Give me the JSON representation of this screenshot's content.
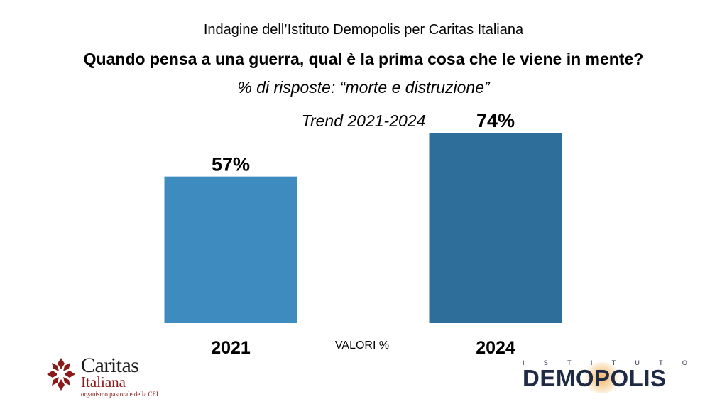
{
  "header": {
    "subtitle": "Indagine dell’Istituto Demopolis per Caritas Italiana",
    "question": "Quando pensa a una guerra, qual è la prima cosa che le viene in mente?",
    "answer": "% di risposte: “morte e distruzione”",
    "trend": "Trend 2021-2024"
  },
  "unit_note": "VALORI %",
  "chart_data": {
    "type": "bar",
    "title": "Quando pensa a una guerra, qual è la prima cosa che le viene in mente?",
    "subtitle": "% di risposte: “morte e distruzione”",
    "categories": [
      "2021",
      "2024"
    ],
    "values": [
      57,
      74
    ],
    "value_labels": [
      "57%",
      "74%"
    ],
    "colors": [
      "#3d8bbf",
      "#2e6e9a"
    ],
    "ylim": [
      0,
      100
    ],
    "grid": false,
    "legend": "none"
  },
  "logos": {
    "caritas": {
      "name": "Caritas",
      "sub": "Italiana",
      "tagline": "organismo pastorale della CEI",
      "cross_color": "#8b1a1a"
    },
    "demopolis": {
      "prefix_letters": [
        "I",
        "S",
        "T",
        "I",
        "T",
        "U",
        "T",
        "O"
      ],
      "name": "DEMOPOLIS",
      "color": "#1f2a44"
    }
  }
}
